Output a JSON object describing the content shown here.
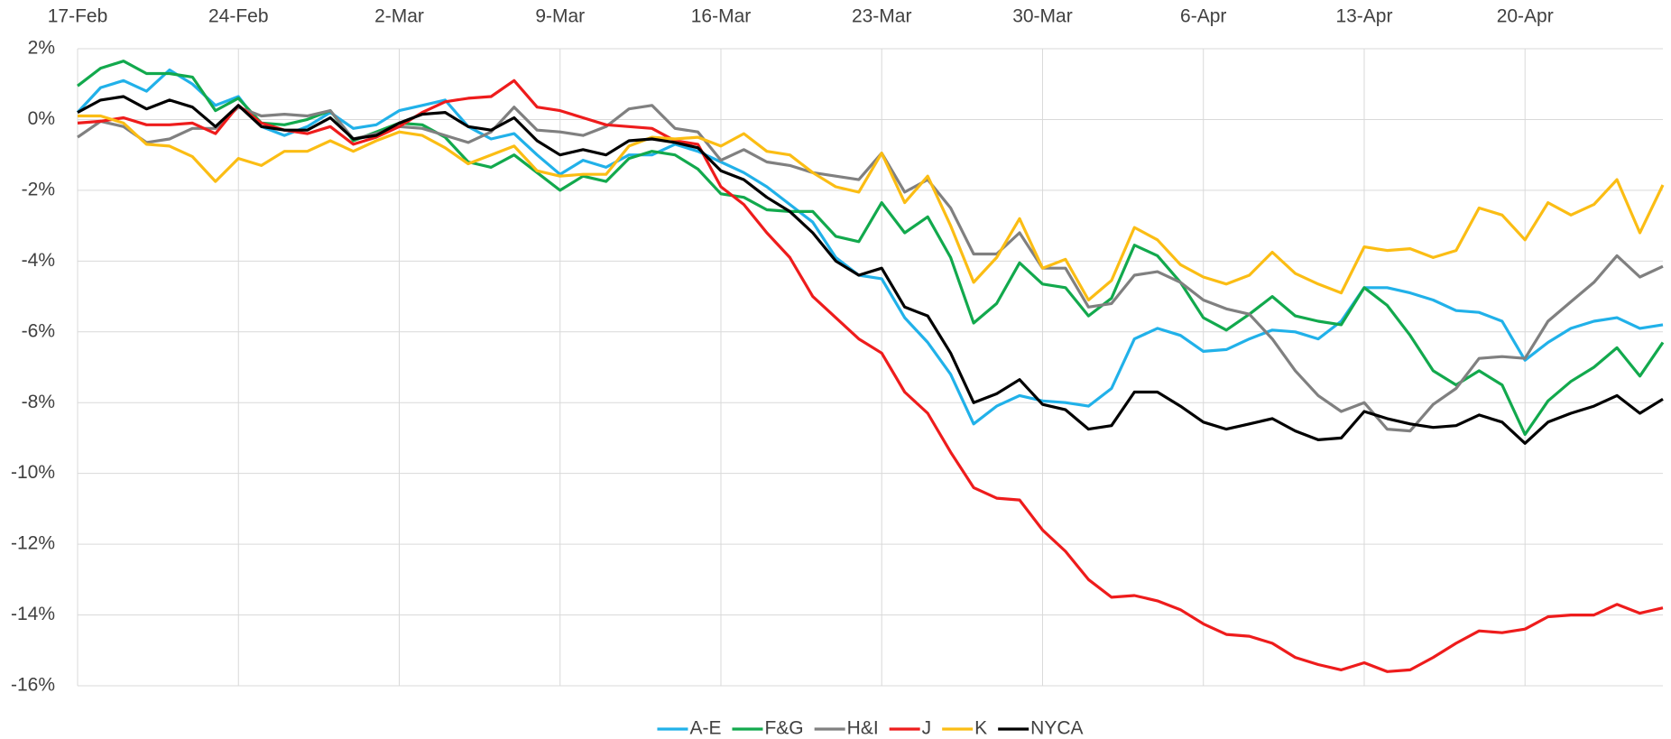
{
  "chart_data": {
    "type": "line",
    "categories": [
      "17-Feb",
      null,
      null,
      null,
      null,
      null,
      null,
      "24-Feb",
      null,
      null,
      null,
      null,
      null,
      null,
      "2-Mar",
      null,
      null,
      null,
      null,
      null,
      null,
      "9-Mar",
      null,
      null,
      null,
      null,
      null,
      null,
      "16-Mar",
      null,
      null,
      null,
      null,
      null,
      null,
      "23-Mar",
      null,
      null,
      null,
      null,
      null,
      null,
      "30-Mar",
      null,
      null,
      null,
      null,
      null,
      null,
      "6-Apr",
      null,
      null,
      null,
      null,
      null,
      null,
      "13-Apr",
      null,
      null,
      null,
      null,
      null,
      null,
      "20-Apr",
      null,
      null,
      null,
      null,
      null,
      null
    ],
    "ylim": [
      -16,
      2
    ],
    "yticks": [
      {
        "value": 2,
        "label": "2%"
      },
      {
        "value": 0,
        "label": "0%"
      },
      {
        "value": -2,
        "label": "-2%"
      },
      {
        "value": -4,
        "label": "-4%"
      },
      {
        "value": -6,
        "label": "-6%"
      },
      {
        "value": -8,
        "label": "-8%"
      },
      {
        "value": -10,
        "label": "-10%"
      },
      {
        "value": -12,
        "label": "-12%"
      },
      {
        "value": -14,
        "label": "-14%"
      },
      {
        "value": -16,
        "label": "-16%"
      }
    ],
    "grid": true,
    "legend": "bottom",
    "series": [
      {
        "name": "A-E",
        "color": "#21b1e9",
        "values": [
          0.2,
          0.9,
          1.1,
          0.8,
          1.4,
          1.0,
          0.4,
          0.65,
          -0.2,
          -0.45,
          -0.2,
          0.2,
          -0.25,
          -0.15,
          0.25,
          0.4,
          0.55,
          -0.2,
          -0.55,
          -0.4,
          -1.0,
          -1.55,
          -1.15,
          -1.35,
          -1.0,
          -1.0,
          -0.7,
          -0.9,
          -1.2,
          -1.5,
          -1.9,
          -2.4,
          -2.9,
          -3.9,
          -4.4,
          -4.5,
          -5.6,
          -6.3,
          -7.2,
          -8.6,
          -8.1,
          -7.8,
          -7.95,
          -8.0,
          -8.1,
          -7.6,
          -6.2,
          -5.9,
          -6.1,
          -6.55,
          -6.5,
          -6.2,
          -5.95,
          -6.0,
          -6.2,
          -5.7,
          -4.75,
          -4.75,
          -4.9,
          -5.1,
          -5.4,
          -5.45,
          -5.7,
          -6.8,
          -6.3,
          -5.9,
          -5.7,
          -5.6,
          -5.9,
          -5.8
        ]
      },
      {
        "name": "F&G",
        "color": "#12a94d",
        "values": [
          0.95,
          1.45,
          1.65,
          1.3,
          1.3,
          1.2,
          0.25,
          0.6,
          -0.1,
          -0.15,
          0.0,
          0.25,
          -0.6,
          -0.35,
          -0.1,
          -0.15,
          -0.5,
          -1.2,
          -1.35,
          -1.0,
          -1.5,
          -2.0,
          -1.6,
          -1.75,
          -1.1,
          -0.9,
          -1.0,
          -1.4,
          -2.1,
          -2.2,
          -2.55,
          -2.6,
          -2.6,
          -3.3,
          -3.45,
          -2.35,
          -3.2,
          -2.75,
          -3.9,
          -5.75,
          -5.2,
          -4.05,
          -4.65,
          -4.75,
          -5.55,
          -5.05,
          -3.55,
          -3.85,
          -4.6,
          -5.6,
          -5.95,
          -5.5,
          -5.0,
          -5.55,
          -5.7,
          -5.8,
          -4.75,
          -5.25,
          -6.1,
          -7.1,
          -7.5,
          -7.1,
          -7.5,
          -8.9,
          -7.95,
          -7.4,
          -7.0,
          -6.45,
          -7.25,
          -6.3
        ]
      },
      {
        "name": "H&I",
        "color": "#808080",
        "values": [
          -0.5,
          -0.05,
          -0.2,
          -0.65,
          -0.55,
          -0.25,
          -0.25,
          0.35,
          0.1,
          0.15,
          0.1,
          0.25,
          -0.55,
          -0.4,
          -0.2,
          -0.25,
          -0.45,
          -0.65,
          -0.35,
          0.35,
          -0.3,
          -0.35,
          -0.45,
          -0.2,
          0.3,
          0.4,
          -0.25,
          -0.35,
          -1.15,
          -0.85,
          -1.2,
          -1.3,
          -1.5,
          -1.6,
          -1.7,
          -0.95,
          -2.05,
          -1.7,
          -2.5,
          -3.8,
          -3.8,
          -3.2,
          -4.2,
          -4.2,
          -5.3,
          -5.2,
          -4.4,
          -4.3,
          -4.6,
          -5.1,
          -5.35,
          -5.5,
          -6.2,
          -7.1,
          -7.8,
          -8.25,
          -8.0,
          -8.75,
          -8.8,
          -8.05,
          -7.6,
          -6.75,
          -6.7,
          -6.75,
          -5.7,
          -5.15,
          -4.6,
          -3.85,
          -4.45,
          -4.15
        ]
      },
      {
        "name": "J",
        "color": "#ee1c1c",
        "values": [
          -0.1,
          -0.05,
          0.05,
          -0.15,
          -0.15,
          -0.1,
          -0.4,
          0.4,
          -0.1,
          -0.3,
          -0.4,
          -0.2,
          -0.7,
          -0.5,
          -0.2,
          0.2,
          0.5,
          0.6,
          0.65,
          1.1,
          0.35,
          0.25,
          0.05,
          -0.15,
          -0.2,
          -0.25,
          -0.6,
          -0.7,
          -1.9,
          -2.4,
          -3.2,
          -3.9,
          -5.0,
          -5.6,
          -6.2,
          -6.6,
          -7.7,
          -8.3,
          -9.4,
          -10.4,
          -10.7,
          -10.75,
          -11.6,
          -12.2,
          -13.0,
          -13.5,
          -13.45,
          -13.6,
          -13.85,
          -14.25,
          -14.55,
          -14.6,
          -14.8,
          -15.2,
          -15.4,
          -15.55,
          -15.35,
          -15.6,
          -15.55,
          -15.2,
          -14.8,
          -14.45,
          -14.5,
          -14.4,
          -14.05,
          -14.0,
          -14.0,
          -13.7,
          -13.95,
          -13.8
        ]
      },
      {
        "name": "K",
        "color": "#fbbd14",
        "values": [
          0.1,
          0.1,
          -0.1,
          -0.7,
          -0.75,
          -1.05,
          -1.75,
          -1.1,
          -1.3,
          -0.9,
          -0.9,
          -0.6,
          -0.9,
          -0.6,
          -0.35,
          -0.45,
          -0.8,
          -1.25,
          -1.0,
          -0.75,
          -1.45,
          -1.6,
          -1.55,
          -1.55,
          -0.75,
          -0.5,
          -0.55,
          -0.5,
          -0.75,
          -0.4,
          -0.9,
          -1.0,
          -1.5,
          -1.9,
          -2.05,
          -0.95,
          -2.35,
          -1.6,
          -3.0,
          -4.6,
          -3.9,
          -2.8,
          -4.2,
          -3.95,
          -5.1,
          -4.55,
          -3.05,
          -3.4,
          -4.1,
          -4.45,
          -4.65,
          -4.4,
          -3.75,
          -4.35,
          -4.65,
          -4.9,
          -3.6,
          -3.7,
          -3.65,
          -3.9,
          -3.7,
          -2.5,
          -2.7,
          -3.4,
          -2.35,
          -2.7,
          -2.4,
          -1.7,
          -3.2,
          -1.85
        ]
      },
      {
        "name": "NYCA",
        "color": "#000000",
        "values": [
          0.2,
          0.55,
          0.65,
          0.3,
          0.55,
          0.35,
          -0.2,
          0.4,
          -0.2,
          -0.3,
          -0.3,
          0.05,
          -0.55,
          -0.45,
          -0.1,
          0.15,
          0.2,
          -0.2,
          -0.3,
          0.05,
          -0.6,
          -1.0,
          -0.85,
          -1.0,
          -0.6,
          -0.55,
          -0.65,
          -0.8,
          -1.45,
          -1.7,
          -2.2,
          -2.6,
          -3.2,
          -4.0,
          -4.4,
          -4.2,
          -5.3,
          -5.55,
          -6.6,
          -8.0,
          -7.75,
          -7.35,
          -8.05,
          -8.2,
          -8.75,
          -8.65,
          -7.7,
          -7.7,
          -8.1,
          -8.55,
          -8.75,
          -8.6,
          -8.45,
          -8.8,
          -9.05,
          -9.0,
          -8.25,
          -8.45,
          -8.6,
          -8.7,
          -8.65,
          -8.35,
          -8.55,
          -9.15,
          -8.55,
          -8.3,
          -8.1,
          -7.8,
          -8.3,
          -7.9
        ]
      }
    ]
  }
}
